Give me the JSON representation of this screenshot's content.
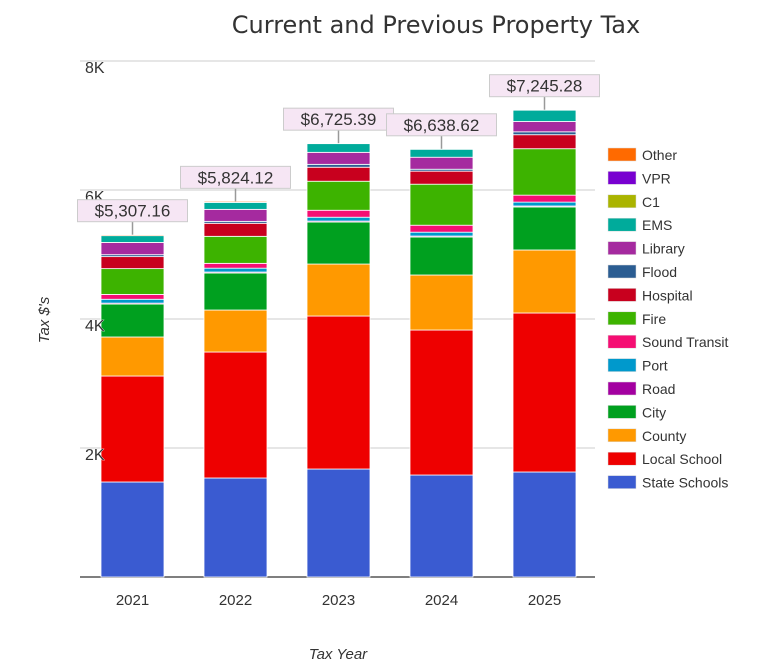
{
  "chart_data": {
    "type": "bar",
    "stacked": true,
    "title": "Current and Previous Property Tax",
    "xlabel": "Tax Year",
    "ylabel": "Tax $'s",
    "ylim": [
      0,
      8000
    ],
    "yticks": [
      {
        "value": 2000,
        "label": "2K"
      },
      {
        "value": 4000,
        "label": "4K"
      },
      {
        "value": 6000,
        "label": "6K"
      },
      {
        "value": 8000,
        "label": "8K"
      }
    ],
    "grid": true,
    "legend_position": "right",
    "categories": [
      "2021",
      "2022",
      "2023",
      "2024",
      "2025"
    ],
    "totals": [
      "$5,307.16",
      "$5,824.12",
      "$6,725.39",
      "$6,638.62",
      "$7,245.28"
    ],
    "series": [
      {
        "name": "State Schools",
        "color": "#3a5bd1",
        "values": [
          1473,
          1535,
          1674,
          1581,
          1628
        ]
      },
      {
        "name": "Local School",
        "color": "#ee0000",
        "values": [
          1643,
          1953,
          2372,
          2248,
          2465
        ]
      },
      {
        "name": "County",
        "color": "#ff9900",
        "values": [
          605,
          651,
          806,
          853,
          977
        ]
      },
      {
        "name": "City",
        "color": "#00a01f",
        "values": [
          510,
          574,
          651,
          589,
          667
        ]
      },
      {
        "name": "Road",
        "color": "#a300a0",
        "values": [
          15,
          15,
          15,
          15,
          15
        ]
      },
      {
        "name": "Port",
        "color": "#0099cc",
        "values": [
          60,
          60,
          60,
          60,
          60
        ]
      },
      {
        "name": "Sound Transit",
        "color": "#f50e73",
        "values": [
          75,
          75,
          108,
          108,
          108
        ]
      },
      {
        "name": "Fire",
        "color": "#3db300",
        "values": [
          400,
          419,
          450,
          636,
          720
        ]
      },
      {
        "name": "Hospital",
        "color": "#c8001e",
        "values": [
          186,
          202,
          217,
          202,
          217
        ]
      },
      {
        "name": "Flood",
        "color": "#2b5d92",
        "values": [
          30,
          30,
          45,
          30,
          45
        ]
      },
      {
        "name": "Library",
        "color": "#a52a9f",
        "values": [
          190,
          186,
          186,
          186,
          160
        ]
      },
      {
        "name": "EMS",
        "color": "#00ab9b",
        "values": [
          105,
          108,
          140,
          124,
          180
        ]
      },
      {
        "name": "C1",
        "color": "#aab400",
        "values": [
          0,
          0,
          0,
          0,
          0
        ]
      },
      {
        "name": "VPR",
        "color": "#7800d0",
        "values": [
          0,
          0,
          0,
          0,
          0
        ]
      },
      {
        "name": "Other",
        "color": "#ff6a00",
        "values": [
          15,
          16,
          2,
          7,
          3
        ]
      }
    ]
  }
}
